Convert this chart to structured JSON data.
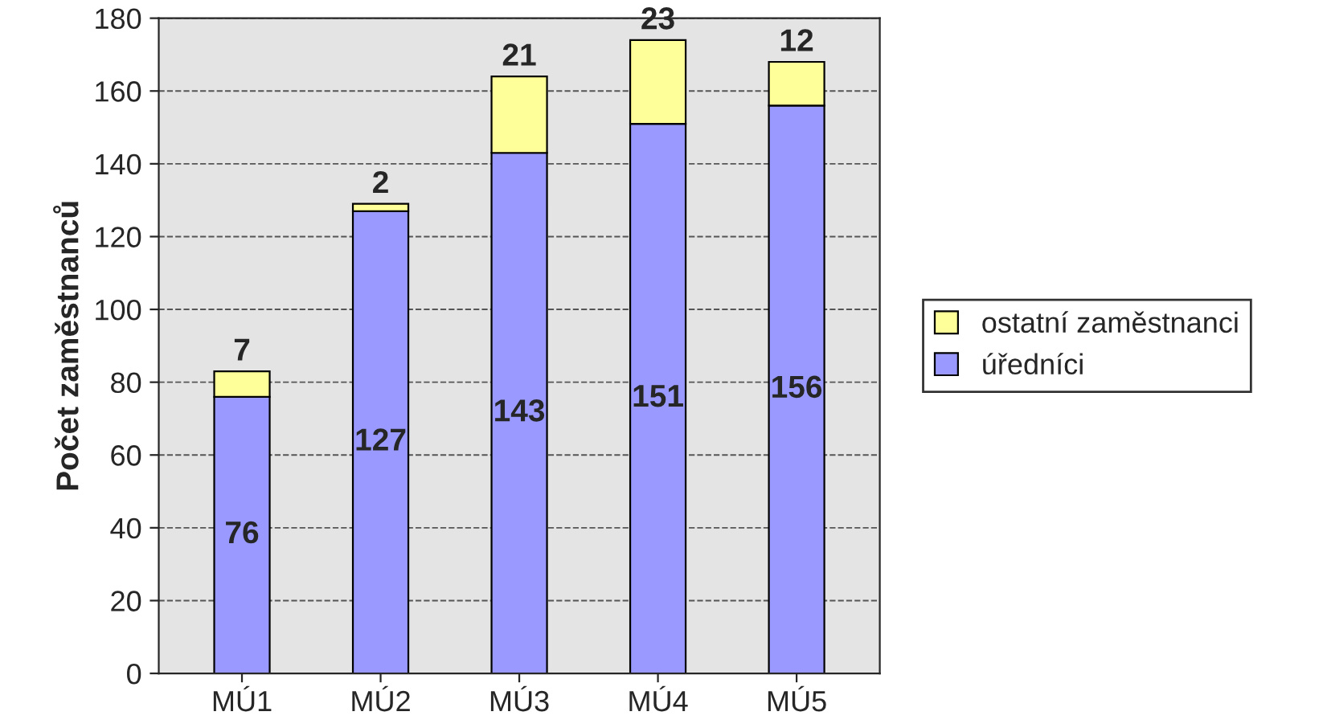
{
  "chart_data": {
    "type": "bar",
    "stacked": true,
    "ylabel": "Počet zaměstnanců",
    "categories": [
      "MÚ1",
      "MÚ2",
      "MÚ3",
      "MÚ4",
      "MÚ5"
    ],
    "series": [
      {
        "name": "úředníci",
        "color": "#9999ff",
        "values": [
          76,
          127,
          143,
          151,
          156
        ]
      },
      {
        "name": "ostatní zaměstnanci",
        "color": "#ffff99",
        "values": [
          7,
          2,
          21,
          23,
          12
        ]
      }
    ],
    "ylim": [
      0,
      180
    ],
    "yticks": [
      0,
      20,
      40,
      60,
      80,
      100,
      120,
      140,
      160,
      180
    ],
    "grid": "y",
    "legend": "right",
    "data_labels": true
  }
}
